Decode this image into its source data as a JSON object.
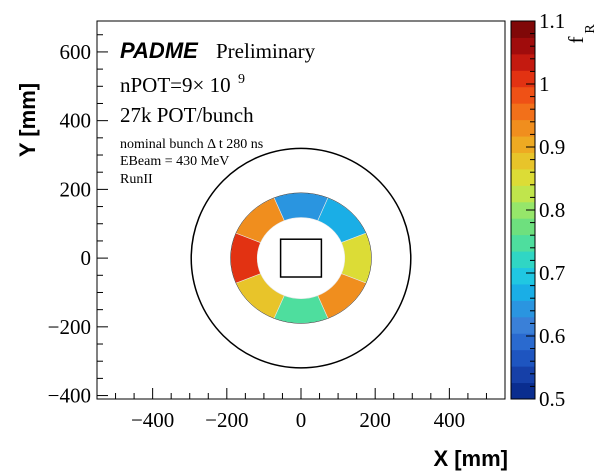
{
  "chart_data": {
    "type": "heatmap",
    "xlabel": "X [mm]",
    "ylabel": "Y [mm]",
    "zlabel": "f",
    "zlabel_sub": "R",
    "xlim": [
      -550,
      550
    ],
    "ylim": [
      -410,
      690
    ],
    "zlim": [
      0.5,
      1.1
    ],
    "x_ticks": [
      "−400",
      "−200",
      "0",
      "200",
      "400"
    ],
    "x_tick_values": [
      -400,
      -200,
      0,
      200,
      400
    ],
    "y_ticks": [
      "−400",
      "−200",
      "0",
      "200",
      "400",
      "600"
    ],
    "y_tick_values": [
      -400,
      -200,
      0,
      200,
      400,
      600
    ],
    "z_ticks": [
      "0.5",
      "0.6",
      "0.7",
      "0.8",
      "0.9",
      "1",
      "1.1"
    ],
    "z_tick_values": [
      0.5,
      0.6,
      0.7,
      0.8,
      0.9,
      1.0,
      1.1
    ],
    "annotations": {
      "brand": "PADME",
      "preliminary": "Preliminary",
      "npot": "nPOT=9× 10",
      "npot_exp": "9",
      "pot_bunch": "27k POT/bunch",
      "bunch": "nominal bunch Δ t 280 ns",
      "ebeam": "EBeam = 430 MeV",
      "run": "RunII"
    },
    "geometry": {
      "outer_circle_radius_mm": 296,
      "ring_inner_radius_mm": 118,
      "ring_outer_radius_mm": 190,
      "inner_square_halfwidth_mm": 55
    },
    "segments": [
      {
        "start_deg": 67.5,
        "end_deg": 112.5,
        "value": 0.64
      },
      {
        "start_deg": 22.5,
        "end_deg": 67.5,
        "value": 0.66
      },
      {
        "start_deg": -22.5,
        "end_deg": 22.5,
        "value": 0.86
      },
      {
        "start_deg": -67.5,
        "end_deg": -22.5,
        "value": 0.92
      },
      {
        "start_deg": -112.5,
        "end_deg": -67.5,
        "value": 0.75
      },
      {
        "start_deg": -157.5,
        "end_deg": -112.5,
        "value": 0.88
      },
      {
        "start_deg": 157.5,
        "end_deg": 202.5,
        "value": 1.02
      },
      {
        "start_deg": 112.5,
        "end_deg": 157.5,
        "value": 0.92
      }
    ],
    "palette": [
      "#0a2d8f",
      "#1640a8",
      "#1e55c0",
      "#2a6acf",
      "#3a80d8",
      "#2a95e0",
      "#1aaee6",
      "#20c7e2",
      "#30d6c4",
      "#4ede9e",
      "#6ee07e",
      "#96e66a",
      "#c0e54c",
      "#dcdc36",
      "#e8c42a",
      "#eeaa22",
      "#f08e1e",
      "#f2701a",
      "#ef5116",
      "#e23212",
      "#c41a10",
      "#a00c0c",
      "#800808"
    ]
  }
}
